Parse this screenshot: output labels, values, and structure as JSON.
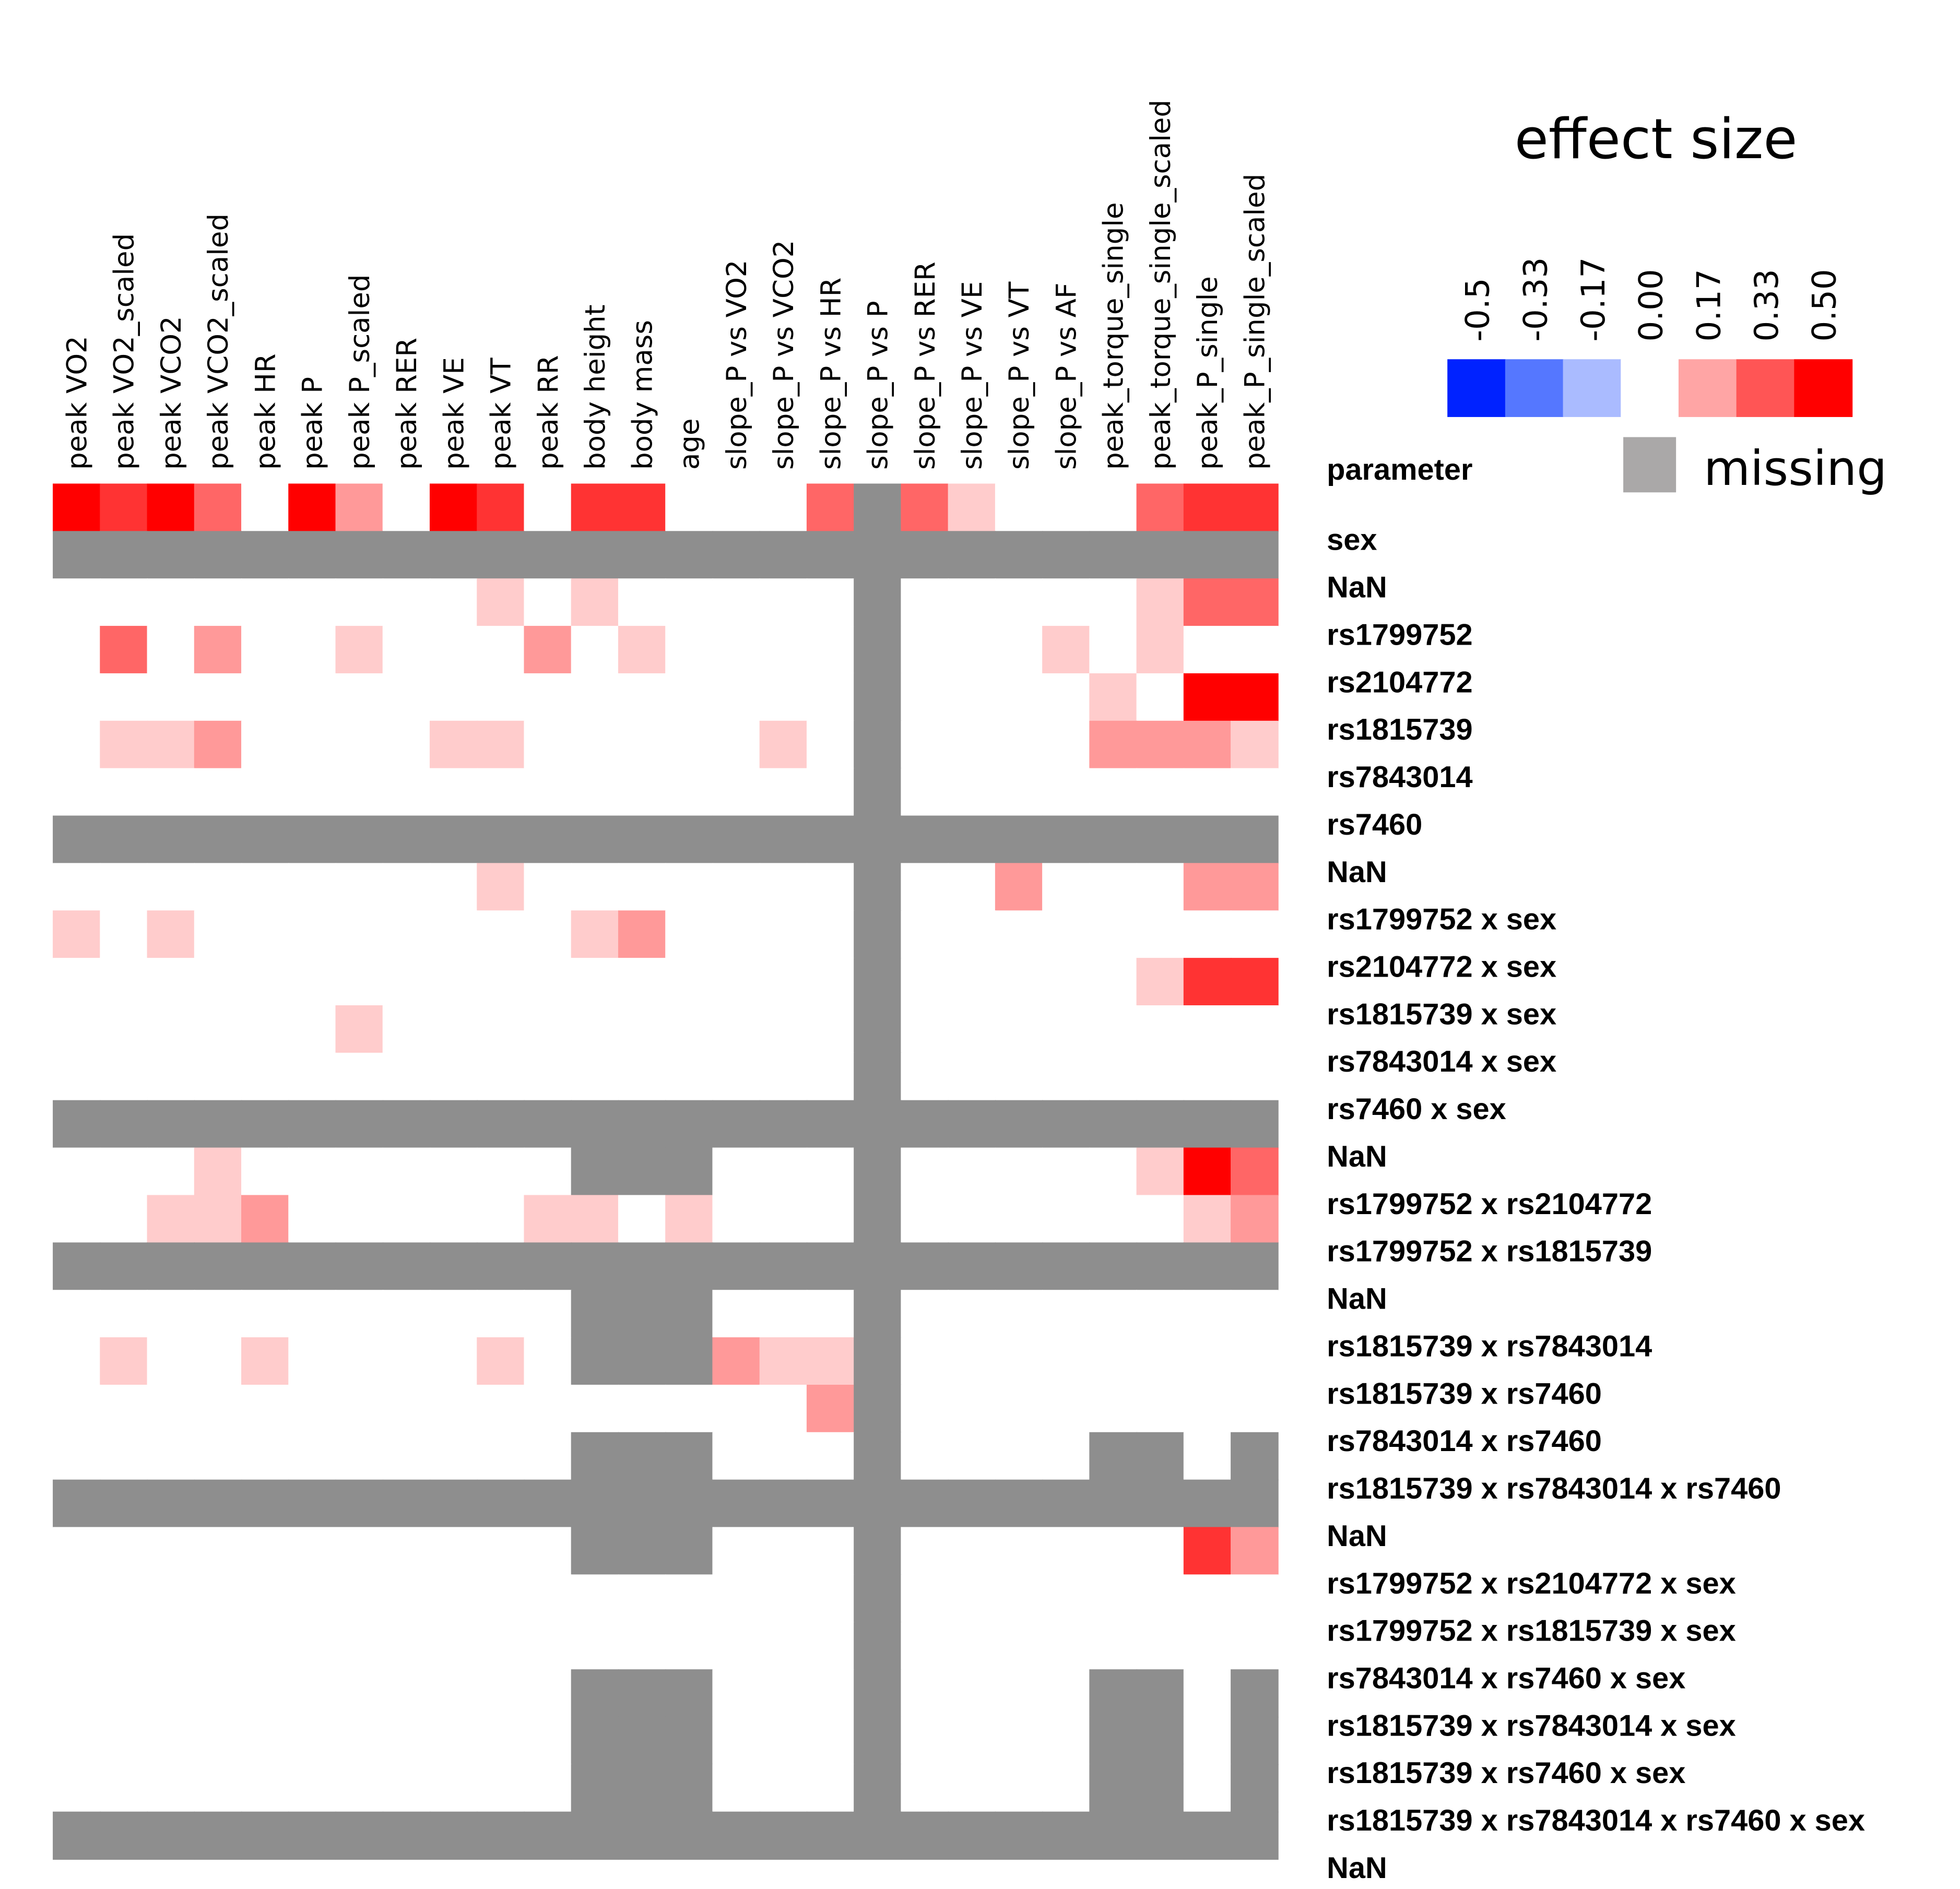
{
  "chart_data": {
    "type": "heatmap",
    "title": "",
    "corner_label": "parameter",
    "columns": [
      "peak VO2",
      "peak VO2_scaled",
      "peak VCO2",
      "peak VCO2_scaled",
      "peak HR",
      "peak P",
      "peak P_scaled",
      "peak RER",
      "peak VE",
      "peak VT",
      "peak RR",
      "body height",
      "body mass",
      "age",
      "slope_P vs VO2",
      "slope_P vs VCO2",
      "slope_P vs HR",
      "slope_P vs P",
      "slope_P vs RER",
      "slope_P vs VE",
      "slope_P vs VT",
      "slope_P vs AF",
      "peak_torque_single",
      "peak_torque_single_scaled",
      "peak_P_single",
      "peak_P_single_scaled"
    ],
    "rows": [
      "sex",
      "NaN",
      "rs1799752",
      "rs2104772",
      "rs1815739",
      "rs7843014",
      "rs7460",
      "NaN",
      "rs1799752 x sex",
      "rs2104772 x sex",
      "rs1815739 x sex",
      "rs7843014 x sex",
      "rs7460 x sex",
      "NaN",
      "rs1799752 x rs2104772",
      "rs1799752 x rs1815739",
      "NaN",
      "rs1815739 x rs7843014",
      "rs1815739 x rs7460",
      "rs7843014 x rs7460",
      "rs1815739 x rs7843014 x rs7460",
      "NaN",
      "rs1799752 x rs2104772 x sex",
      "rs1799752 x rs1815739 x sex",
      "rs7843014 x rs7460 x sex",
      "rs1815739 x rs7843014 x sex",
      "rs1815739 x rs7460 x sex",
      "rs1815739 x rs7843014 x rs7460 x sex",
      "NaN"
    ],
    "values": [
      [
        0.5,
        0.4,
        0.5,
        0.3,
        0,
        0.5,
        0.2,
        0,
        0.5,
        0.4,
        0,
        0.4,
        0.4,
        0,
        0,
        0,
        0.3,
        null,
        0.3,
        0.1,
        0,
        0,
        0,
        0.3,
        0.4,
        0.4
      ],
      [
        null,
        null,
        null,
        null,
        null,
        null,
        null,
        null,
        null,
        null,
        null,
        null,
        null,
        null,
        null,
        null,
        null,
        null,
        null,
        null,
        null,
        null,
        null,
        null,
        null,
        null
      ],
      [
        0,
        0,
        0,
        0,
        0,
        0,
        0,
        0,
        0,
        0.1,
        0,
        0.1,
        0,
        0,
        0,
        0,
        0,
        null,
        0,
        0,
        0,
        0,
        0,
        0.1,
        0.3,
        0.3
      ],
      [
        0,
        0.3,
        0,
        0.2,
        0,
        0,
        0.1,
        0,
        0,
        0,
        0.2,
        0,
        0.1,
        0,
        0,
        0,
        0,
        null,
        0,
        0,
        0,
        0.1,
        0,
        0.1,
        0,
        0
      ],
      [
        0,
        0,
        0,
        0,
        0,
        0,
        0,
        0,
        0,
        0,
        0,
        0,
        0,
        0,
        0,
        0,
        0,
        null,
        0,
        0,
        0,
        0,
        0.1,
        0,
        0.5,
        0.5
      ],
      [
        0,
        0.1,
        0.1,
        0.2,
        0,
        0,
        0,
        0,
        0.1,
        0.1,
        0,
        0,
        0,
        0,
        0,
        0.1,
        0,
        null,
        0,
        0,
        0,
        0,
        0.2,
        0.2,
        0.2,
        0.1
      ],
      [
        0,
        0,
        0,
        0,
        0,
        0,
        0,
        0,
        0,
        0,
        0,
        0,
        0,
        0,
        0,
        0,
        0,
        null,
        0,
        0,
        0,
        0,
        0,
        0,
        0,
        0
      ],
      [
        null,
        null,
        null,
        null,
        null,
        null,
        null,
        null,
        null,
        null,
        null,
        null,
        null,
        null,
        null,
        null,
        null,
        null,
        null,
        null,
        null,
        null,
        null,
        null,
        null,
        null
      ],
      [
        0,
        0,
        0,
        0,
        0,
        0,
        0,
        0,
        0,
        0.1,
        0,
        0,
        0,
        0,
        0,
        0,
        0,
        null,
        0,
        0,
        0.2,
        0,
        0,
        0,
        0.2,
        0.2
      ],
      [
        0.1,
        0,
        0.1,
        0,
        0,
        0,
        0,
        0,
        0,
        0,
        0,
        0.1,
        0.2,
        0,
        0,
        0,
        0,
        null,
        0,
        0,
        0,
        0,
        0,
        0,
        0,
        0
      ],
      [
        0,
        0,
        0,
        0,
        0,
        0,
        0,
        0,
        0,
        0,
        0,
        0,
        0,
        0,
        0,
        0,
        0,
        null,
        0,
        0,
        0,
        0,
        0,
        0.1,
        0.4,
        0.4
      ],
      [
        0,
        0,
        0,
        0,
        0,
        0,
        0.1,
        0,
        0,
        0,
        0,
        0,
        0,
        0,
        0,
        0,
        0,
        null,
        0,
        0,
        0,
        0,
        0,
        0,
        0,
        0
      ],
      [
        0,
        0,
        0,
        0,
        0,
        0,
        0,
        0,
        0,
        0,
        0,
        0,
        0,
        0,
        0,
        0,
        0,
        null,
        0,
        0,
        0,
        0,
        0,
        0,
        0,
        0
      ],
      [
        null,
        null,
        null,
        null,
        null,
        null,
        null,
        null,
        null,
        null,
        null,
        null,
        null,
        null,
        null,
        null,
        null,
        null,
        null,
        null,
        null,
        null,
        null,
        null,
        null,
        null
      ],
      [
        0,
        0,
        0,
        0.1,
        0,
        0,
        0,
        0,
        0,
        0,
        0,
        null,
        null,
        null,
        0,
        0,
        0,
        null,
        0,
        0,
        0,
        0,
        0,
        0.1,
        0.5,
        0.3
      ],
      [
        0,
        0,
        0.1,
        0.1,
        0.2,
        0,
        0,
        0,
        0,
        0,
        0.1,
        0.1,
        0,
        0.1,
        0,
        0,
        0,
        null,
        0,
        0,
        0,
        0,
        0,
        0,
        0.1,
        0.2
      ],
      [
        null,
        null,
        null,
        null,
        null,
        null,
        null,
        null,
        null,
        null,
        null,
        null,
        null,
        null,
        null,
        null,
        null,
        null,
        null,
        null,
        null,
        null,
        null,
        null,
        null,
        null
      ],
      [
        0,
        0,
        0,
        0,
        0,
        0,
        0,
        0,
        0,
        0,
        0,
        null,
        null,
        null,
        0,
        0,
        0,
        null,
        0,
        0,
        0,
        0,
        0,
        0,
        0,
        0
      ],
      [
        0,
        0.1,
        0,
        0,
        0.1,
        0,
        0,
        0,
        0,
        0.1,
        0,
        null,
        null,
        null,
        0.2,
        0.1,
        0.1,
        null,
        0,
        0,
        0,
        0,
        0,
        0,
        0,
        0
      ],
      [
        0,
        0,
        0,
        0,
        0,
        0,
        0,
        0,
        0,
        0,
        0,
        0,
        0,
        0,
        0,
        0,
        0.2,
        null,
        0,
        0,
        0,
        0,
        0,
        0,
        0,
        0
      ],
      [
        0,
        0,
        0,
        0,
        0,
        0,
        0,
        0,
        0,
        0,
        0,
        null,
        null,
        null,
        0,
        0,
        0,
        null,
        0,
        0,
        0,
        0,
        null,
        null,
        0,
        null
      ],
      [
        null,
        null,
        null,
        null,
        null,
        null,
        null,
        null,
        null,
        null,
        null,
        null,
        null,
        null,
        null,
        null,
        null,
        null,
        null,
        null,
        null,
        null,
        null,
        null,
        null,
        null
      ],
      [
        0,
        0,
        0,
        0,
        0,
        0,
        0,
        0,
        0,
        0,
        0,
        null,
        null,
        null,
        0,
        0,
        0,
        null,
        0,
        0,
        0,
        0,
        0,
        0,
        0.4,
        0.2
      ],
      [
        0,
        0,
        0,
        0,
        0,
        0,
        0,
        0,
        0,
        0,
        0,
        0,
        0,
        0,
        0,
        0,
        0,
        null,
        0,
        0,
        0,
        0,
        0,
        0,
        0,
        0
      ],
      [
        0,
        0,
        0,
        0,
        0,
        0,
        0,
        0,
        0,
        0,
        0,
        0,
        0,
        0,
        0,
        0,
        0,
        null,
        0,
        0,
        0,
        0,
        0,
        0,
        0,
        0
      ],
      [
        0,
        0,
        0,
        0,
        0,
        0,
        0,
        0,
        0,
        0,
        0,
        null,
        null,
        null,
        0,
        0,
        0,
        null,
        0,
        0,
        0,
        0,
        null,
        null,
        0,
        null
      ],
      [
        0,
        0,
        0,
        0,
        0,
        0,
        0,
        0,
        0,
        0,
        0,
        null,
        null,
        null,
        0,
        0,
        0,
        null,
        0,
        0,
        0,
        0,
        null,
        null,
        0,
        null
      ],
      [
        0,
        0,
        0,
        0,
        0,
        0,
        0,
        0,
        0,
        0,
        0,
        null,
        null,
        null,
        0,
        0,
        0,
        null,
        0,
        0,
        0,
        0,
        null,
        null,
        0,
        null
      ],
      [
        null,
        null,
        null,
        null,
        null,
        null,
        null,
        null,
        null,
        null,
        null,
        null,
        null,
        null,
        null,
        null,
        null,
        null,
        null,
        null,
        null,
        null,
        null,
        null,
        null,
        null
      ]
    ],
    "value_range": [
      -0.5,
      0.5
    ],
    "missing_color": "#8e8e8e",
    "legend": {
      "title": "effect size",
      "ticks": [
        "-0.5",
        "-0.33",
        "-0.17",
        "0.00",
        "0.17",
        "0.33",
        "0.50"
      ],
      "colors": [
        "#0022ff",
        "#5577ff",
        "#aabbff",
        "#ffffff",
        "#ffa5a5",
        "#ff5555",
        "#ff0000"
      ],
      "missing_label": "missing",
      "missing_swatch_color": "#aaa8a8",
      "placement": "top-right"
    }
  }
}
